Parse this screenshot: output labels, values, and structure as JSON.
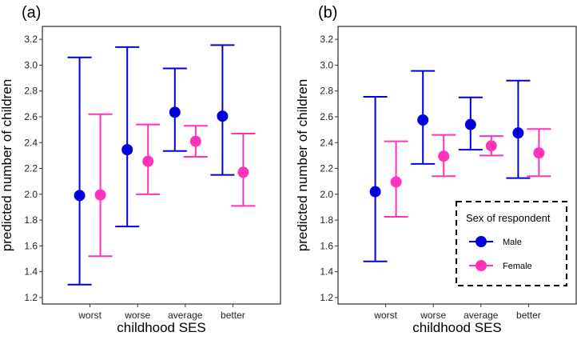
{
  "chart_data": [
    {
      "type": "errorbar-point",
      "panel_label": "(a)",
      "xlabel": "childhood SES",
      "ylabel": "predicted number of children",
      "ylim": [
        1.15,
        3.3
      ],
      "yticks": [
        1.2,
        1.4,
        1.6,
        1.8,
        2.0,
        2.2,
        2.4,
        2.6,
        2.8,
        3.0,
        3.2
      ],
      "categories": [
        "worst",
        "worse",
        "average",
        "better"
      ],
      "series": [
        {
          "name": "Male",
          "color": "#0000dd",
          "values": [
            1.99,
            2.345,
            2.635,
            2.605
          ],
          "lower": [
            1.3,
            1.75,
            2.335,
            2.15
          ],
          "upper": [
            3.06,
            3.14,
            2.975,
            3.155
          ]
        },
        {
          "name": "Female",
          "color": "#ff33bb",
          "values": [
            1.995,
            2.255,
            2.41,
            2.17
          ],
          "lower": [
            1.52,
            2.0,
            2.29,
            1.91
          ],
          "upper": [
            2.62,
            2.54,
            2.53,
            2.47
          ]
        }
      ]
    },
    {
      "type": "errorbar-point",
      "panel_label": "(b)",
      "xlabel": "childhood SES",
      "ylabel": "predicted number of children",
      "ylim": [
        1.15,
        3.3
      ],
      "yticks": [
        1.2,
        1.4,
        1.6,
        1.8,
        2.0,
        2.2,
        2.4,
        2.6,
        2.8,
        3.0,
        3.2
      ],
      "categories": [
        "worst",
        "worse",
        "average",
        "better"
      ],
      "series": [
        {
          "name": "Male",
          "color": "#0000dd",
          "values": [
            2.02,
            2.575,
            2.54,
            2.475
          ],
          "lower": [
            1.48,
            2.235,
            2.345,
            2.125
          ],
          "upper": [
            2.755,
            2.955,
            2.75,
            2.88
          ]
        },
        {
          "name": "Female",
          "color": "#ff33bb",
          "values": [
            2.095,
            2.295,
            2.375,
            2.32
          ],
          "lower": [
            1.825,
            2.14,
            2.3,
            2.14
          ],
          "upper": [
            2.41,
            2.46,
            2.45,
            2.505
          ]
        }
      ],
      "legend": {
        "title": "Sex of respondent",
        "position": "bottom-right",
        "entries": [
          "Male",
          "Female"
        ]
      }
    }
  ]
}
